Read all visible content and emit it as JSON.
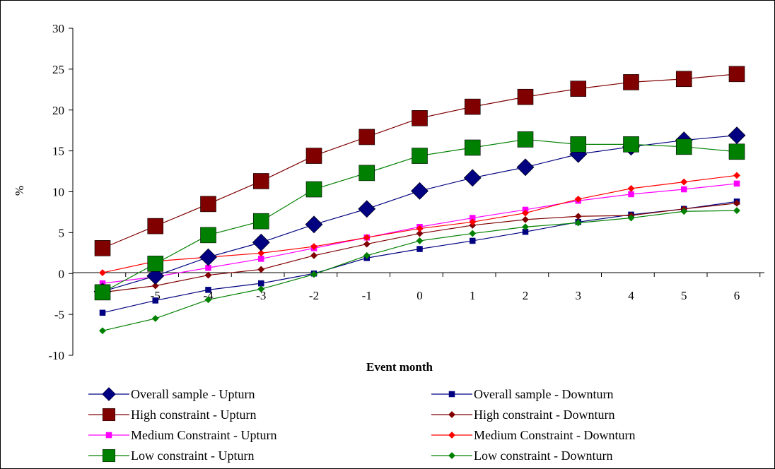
{
  "chart_data": {
    "type": "line",
    "title": "",
    "xlabel": "Event month",
    "ylabel": "%",
    "x": [
      -6,
      -5,
      -4,
      -3,
      -2,
      -1,
      0,
      1,
      2,
      3,
      4,
      5,
      6
    ],
    "x_tick_labels": [
      "-6",
      "-5",
      "-4",
      "-3",
      "-2",
      "-1",
      "0",
      "1",
      "2",
      "3",
      "4",
      "5",
      "6"
    ],
    "ylim": [
      -10,
      30
    ],
    "y_ticks": [
      -10,
      -5,
      0,
      5,
      10,
      15,
      20,
      25,
      30
    ],
    "y_tick_labels": [
      "-10",
      "-5",
      "0",
      "5",
      "10",
      "15",
      "20",
      "25",
      "30"
    ],
    "grid": false,
    "legend_position": "bottom",
    "series": [
      {
        "name": "Overall sample - Upturn",
        "color": "#000080",
        "marker": "diamond",
        "size": "large",
        "values": [
          -2.2,
          -0.3,
          2.0,
          3.8,
          6.0,
          7.9,
          10.1,
          11.7,
          13.0,
          14.6,
          15.5,
          16.3,
          16.9
        ]
      },
      {
        "name": "Overall sample - Downturn",
        "color": "#000080",
        "marker": "square",
        "size": "small",
        "values": [
          -4.8,
          -3.3,
          -2.0,
          -1.2,
          0.0,
          1.9,
          3.0,
          4.0,
          5.1,
          6.3,
          7.2,
          7.9,
          8.8
        ]
      },
      {
        "name": "High constraint - Upturn",
        "color": "#800000",
        "marker": "square",
        "size": "large",
        "values": [
          3.1,
          5.8,
          8.5,
          11.3,
          14.4,
          16.7,
          19.0,
          20.4,
          21.6,
          22.6,
          23.4,
          23.8,
          24.4
        ]
      },
      {
        "name": "High constraint - Downturn",
        "color": "#800000",
        "marker": "diamond",
        "size": "small",
        "values": [
          -2.3,
          -1.5,
          -0.2,
          0.5,
          2.2,
          3.6,
          4.9,
          5.9,
          6.6,
          7.0,
          7.1,
          7.9,
          8.6
        ]
      },
      {
        "name": "Medium Constraint - Upturn",
        "color": "#FF00FF",
        "marker": "square",
        "size": "small",
        "values": [
          -1.2,
          -0.4,
          0.7,
          1.8,
          3.1,
          4.4,
          5.7,
          6.8,
          7.8,
          8.9,
          9.7,
          10.3,
          11.0
        ]
      },
      {
        "name": "Medium Constraint - Downturn",
        "color": "#FF0000",
        "marker": "diamond",
        "size": "small",
        "values": [
          0.1,
          1.5,
          2.0,
          2.5,
          3.3,
          4.4,
          5.5,
          6.3,
          7.4,
          9.1,
          10.4,
          11.2,
          12.0
        ]
      },
      {
        "name": "Low constraint - Upturn",
        "color": "#008000",
        "marker": "square",
        "size": "large",
        "values": [
          -2.3,
          1.2,
          4.7,
          6.4,
          10.3,
          12.3,
          14.4,
          15.4,
          16.4,
          15.8,
          15.8,
          15.5,
          14.9
        ]
      },
      {
        "name": "Low constraint - Downturn",
        "color": "#008000",
        "marker": "diamond",
        "size": "small",
        "values": [
          -7.0,
          -5.5,
          -3.2,
          -1.9,
          -0.1,
          2.2,
          4.0,
          4.9,
          5.7,
          6.2,
          6.8,
          7.6,
          7.7
        ]
      }
    ]
  }
}
